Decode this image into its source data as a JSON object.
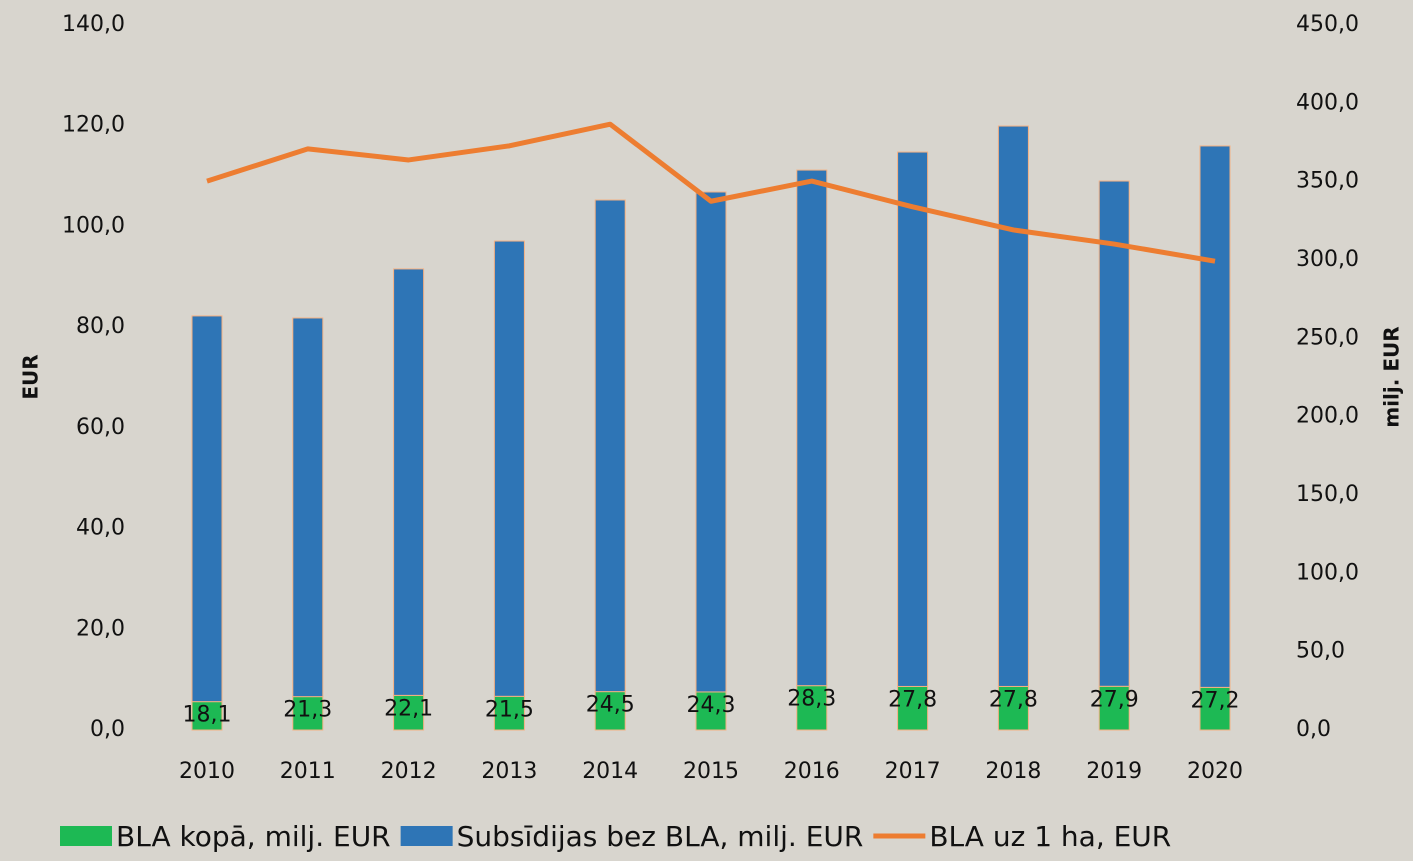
{
  "chart_data": {
    "type": "bar",
    "categories": [
      "2010",
      "2011",
      "2012",
      "2013",
      "2014",
      "2015",
      "2016",
      "2017",
      "2018",
      "2019",
      "2020"
    ],
    "ylabel": "EUR",
    "y2label": "milj. EUR",
    "ylim": [
      0,
      140
    ],
    "yticks": [
      {
        "value": 0,
        "label": "0,0"
      },
      {
        "value": 20,
        "label": "20,0"
      },
      {
        "value": 40,
        "label": "40,0"
      },
      {
        "value": 60,
        "label": "60,0"
      },
      {
        "value": 80,
        "label": "80,0"
      },
      {
        "value": 100,
        "label": "100,0"
      },
      {
        "value": 120,
        "label": "120,0"
      },
      {
        "value": 140,
        "label": "140,0"
      }
    ],
    "y2lim": [
      0,
      450
    ],
    "y2ticks": [
      {
        "value": 0,
        "label": "0,0"
      },
      {
        "value": 50,
        "label": "50,0"
      },
      {
        "value": 100,
        "label": "100,0"
      },
      {
        "value": 150,
        "label": "150,0"
      },
      {
        "value": 200,
        "label": "200,0"
      },
      {
        "value": 250,
        "label": "250,0"
      },
      {
        "value": 300,
        "label": "300,0"
      },
      {
        "value": 350,
        "label": "350,0"
      },
      {
        "value": 400,
        "label": "400,0"
      },
      {
        "value": 450,
        "label": "450,0"
      }
    ],
    "stacked": true,
    "series": [
      {
        "name": "BLA kopā, milj. EUR",
        "color": "#1db954",
        "axis": "y2",
        "kind": "bar",
        "values": [
          18.1,
          21.3,
          22.1,
          21.5,
          24.5,
          24.3,
          28.3,
          27.8,
          27.8,
          27.9,
          27.2
        ],
        "value_labels": [
          "18,1",
          "21,3",
          "22,1",
          "21,5",
          "24,5",
          "24,3",
          "28,3",
          "27,8",
          "27,8",
          "27,9",
          "27,2"
        ]
      },
      {
        "name": "Subsīdijas bez BLA, milj. EUR",
        "color": "#2e75b6",
        "axis": "y2",
        "kind": "bar",
        "values": [
          246.2,
          241.7,
          272.2,
          290.6,
          313.8,
          319.1,
          329.1,
          341.1,
          357.7,
          322.5,
          345.6
        ]
      },
      {
        "name": "BLA uz 1 ha, EUR",
        "color": "#ed7d31",
        "kind": "line",
        "values": [
          109.0,
          115.4,
          113.2,
          116.0,
          120.3,
          105.0,
          109.0,
          103.9,
          99.3,
          96.5,
          93.1
        ]
      }
    ]
  }
}
